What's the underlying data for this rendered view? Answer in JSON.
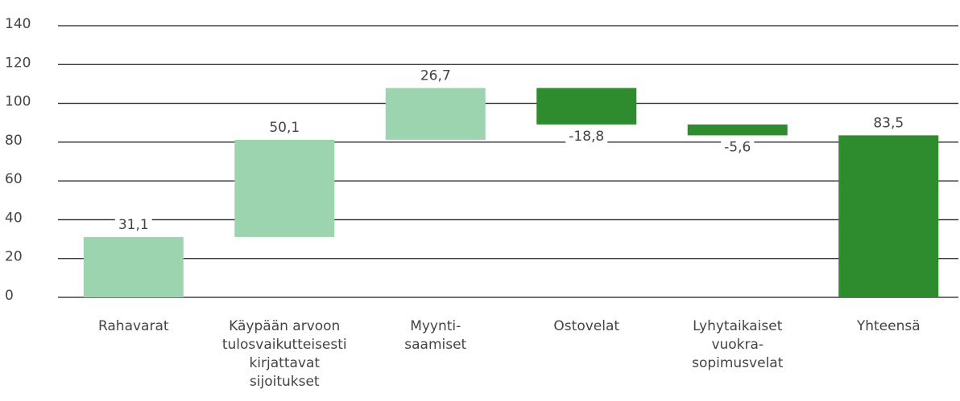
{
  "chart_data": {
    "type": "waterfall",
    "categories": [
      [
        "Rahavarat"
      ],
      [
        "Käypään arvoon",
        "tulosvaikutteisesti",
        "kirjattavat",
        "sijoitukset"
      ],
      [
        "Myynti-",
        "saamiset"
      ],
      [
        "Ostovelat"
      ],
      [
        "Lyhytaikaiset",
        "vuokra-",
        "sopimusvelat"
      ],
      [
        "Yhteensä"
      ]
    ],
    "values": [
      31.1,
      50.1,
      26.7,
      -18.8,
      -5.6,
      83.5
    ],
    "value_labels": [
      "31,1",
      "50,1",
      "26,7",
      "-18,8",
      "-5,6",
      "83,5"
    ],
    "is_total": [
      false,
      false,
      false,
      false,
      false,
      true
    ],
    "increase_color": "#9dd4b0",
    "decrease_color": "#2e8b2e",
    "total_color": "#2e8b2e",
    "ylim": [
      0,
      140
    ],
    "yticks": [
      0,
      20,
      40,
      60,
      80,
      100,
      120,
      140
    ],
    "grid": true
  }
}
